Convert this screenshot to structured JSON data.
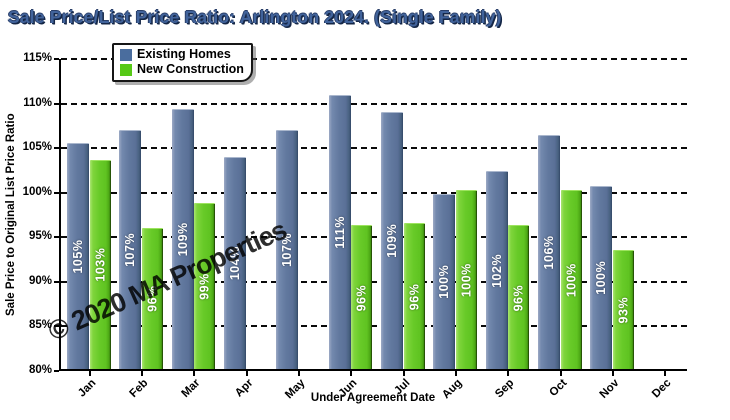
{
  "title": "Sale Price/List Price Ratio: Arlington 2024. (Single Family)",
  "watermark": "© 2020 MA Properties",
  "accent_colors": {
    "title_blue": "#41639b",
    "existing_homes": "#4a6d9e",
    "new_construction": "#56c916"
  },
  "legend": {
    "items": [
      {
        "label": "Existing Homes",
        "color": "#4a6d9e"
      },
      {
        "label": "New Construction",
        "color": "#56c916"
      }
    ]
  },
  "chart_data": {
    "type": "bar",
    "title": "Sale Price/List Price Ratio: Arlington 2024. (Single Family)",
    "xlabel": "Under Agreement Date",
    "ylabel": "Sale Price to Original List Price Ratio",
    "ylim": [
      80,
      115
    ],
    "ytick_step": 5,
    "ytick_labels": [
      "80%",
      "85%",
      "90%",
      "95%",
      "100%",
      "105%",
      "110%",
      "115%"
    ],
    "grid": "dashed horizontal lines at each 5% tick",
    "legend_position": "top-left inside plot",
    "categories": [
      "Jan",
      "Feb",
      "Mar",
      "Apr",
      "May",
      "Jun",
      "Jul",
      "Aug",
      "Sep",
      "Oct",
      "Nov",
      "Dec"
    ],
    "series": [
      {
        "name": "Existing Homes",
        "color": "#4a6d9e",
        "values": [
          105.3,
          106.8,
          109.2,
          103.8,
          106.8,
          110.7,
          108.8,
          99.6,
          102.2,
          106.3,
          100.5,
          null
        ],
        "labels": [
          "105%",
          "107%",
          "109%",
          "104%",
          "107%",
          "111%",
          "109%",
          "100%",
          "102%",
          "106%",
          "100%",
          null
        ]
      },
      {
        "name": "New Construction",
        "color": "#56c916",
        "values": [
          103.4,
          95.8,
          98.6,
          null,
          null,
          96.2,
          96.4,
          100.1,
          96.2,
          100.1,
          93.4,
          null
        ],
        "labels": [
          "103%",
          "96%",
          "99%",
          null,
          null,
          "96%",
          "96%",
          "100%",
          "96%",
          "100%",
          "93%",
          null
        ]
      }
    ]
  }
}
